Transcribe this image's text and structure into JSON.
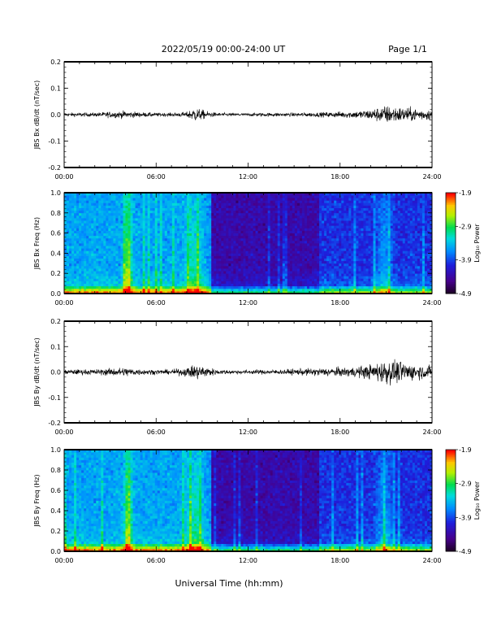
{
  "header": {
    "title": "2022/05/19  00:00-24:00 UT",
    "page": "Page 1/1"
  },
  "xlabel": "Universal Time (hh:mm)",
  "chart_data": [
    {
      "type": "line",
      "ylabel": "JBS Bx dB/dt (nT/sec)",
      "xlim": [
        0,
        24
      ],
      "ylim": [
        -0.2,
        0.2
      ],
      "x_ticks": [
        "00:00",
        "06:00",
        "12:00",
        "18:00",
        "24:00"
      ],
      "y_ticks": [
        "0.2",
        "0.1",
        "0.0",
        "-0.1",
        "-0.2"
      ],
      "series": [
        {
          "x": [
            0,
            1,
            2,
            3,
            4,
            5,
            6,
            7,
            8,
            8.5,
            9,
            9.5,
            10,
            11,
            12,
            13,
            14,
            15,
            16,
            17,
            18,
            19,
            20,
            21,
            22,
            23,
            24
          ],
          "amplitude": [
            0.012,
            0.013,
            0.013,
            0.02,
            0.024,
            0.016,
            0.012,
            0.012,
            0.018,
            0.048,
            0.032,
            0.018,
            0.012,
            0.01,
            0.01,
            0.012,
            0.012,
            0.012,
            0.014,
            0.016,
            0.02,
            0.024,
            0.035,
            0.06,
            0.05,
            0.04,
            0.035
          ]
        }
      ]
    },
    {
      "type": "heatmap",
      "ylabel": "JBS Bx Freq (Hz)",
      "xlim": [
        0,
        24
      ],
      "ylim": [
        0,
        1.0
      ],
      "x_ticks": [
        "00:00",
        "06:00",
        "12:00",
        "18:00",
        "24:00"
      ],
      "y_ticks": [
        "1.0",
        "0.8",
        "0.6",
        "0.4",
        "0.2",
        "0.0"
      ],
      "colorbar": {
        "label": "Log₁₀ Power",
        "ticks": [
          "-1.9",
          "-2.9",
          "-3.9",
          "-4.9"
        ],
        "range": [
          -4.9,
          -1.9
        ]
      }
    },
    {
      "type": "line",
      "ylabel": "JBS By dB/dt (nT/sec)",
      "xlim": [
        0,
        24
      ],
      "ylim": [
        -0.2,
        0.2
      ],
      "x_ticks": [
        "00:00",
        "06:00",
        "12:00",
        "18:00",
        "24:00"
      ],
      "y_ticks": [
        "0.2",
        "0.1",
        "0.0",
        "-0.1",
        "-0.2"
      ],
      "series": [
        {
          "x": [
            0,
            1,
            2,
            3,
            4,
            5,
            6,
            7,
            8,
            8.5,
            9,
            9.5,
            10,
            11,
            12,
            13,
            14,
            15,
            16,
            17,
            18,
            19,
            20,
            21,
            22,
            23,
            24
          ],
          "amplitude": [
            0.016,
            0.018,
            0.018,
            0.025,
            0.032,
            0.02,
            0.016,
            0.016,
            0.03,
            0.05,
            0.045,
            0.03,
            0.016,
            0.014,
            0.014,
            0.016,
            0.016,
            0.02,
            0.025,
            0.028,
            0.03,
            0.035,
            0.05,
            0.085,
            0.07,
            0.05,
            0.04
          ]
        }
      ]
    },
    {
      "type": "heatmap",
      "ylabel": "JBS By Freq (Hz)",
      "xlim": [
        0,
        24
      ],
      "ylim": [
        0,
        1.0
      ],
      "x_ticks": [
        "00:00",
        "06:00",
        "12:00",
        "18:00",
        "24:00"
      ],
      "y_ticks": [
        "1.0",
        "0.8",
        "0.6",
        "0.4",
        "0.2",
        "0.0"
      ],
      "colorbar": {
        "label": "Log₁₀ Power",
        "ticks": [
          "-1.9",
          "-2.9",
          "-3.9",
          "-4.9"
        ],
        "range": [
          -4.9,
          -1.9
        ]
      }
    }
  ]
}
